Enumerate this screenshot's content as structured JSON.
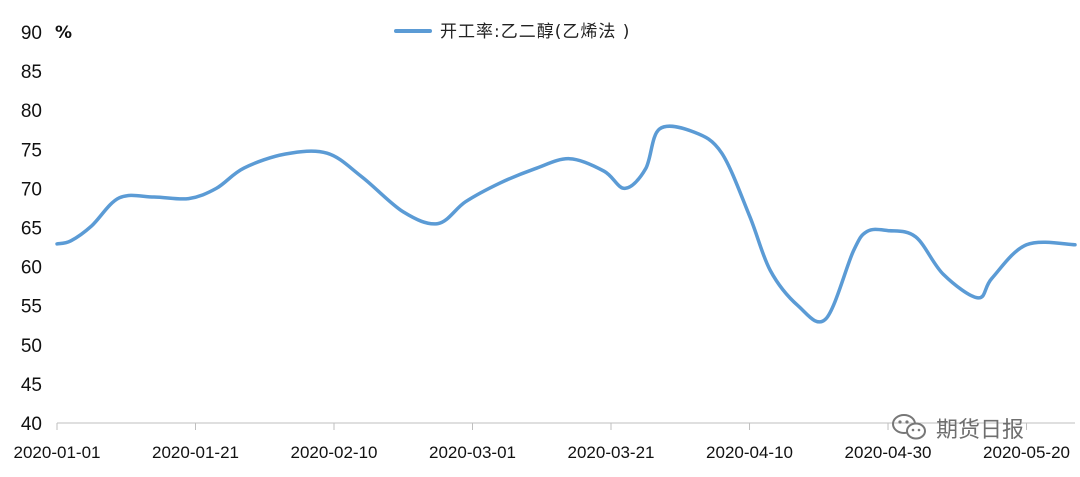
{
  "chart_data": {
    "type": "line",
    "unit": "%",
    "ylim": [
      40,
      90
    ],
    "yticks": [
      40,
      45,
      50,
      55,
      60,
      65,
      70,
      75,
      80,
      85,
      90
    ],
    "x_tick_labels": [
      "2020-01-01",
      "2020-01-21",
      "2020-02-10",
      "2020-03-01",
      "2020-03-21",
      "2020-04-10",
      "2020-04-30",
      "2020-05-20"
    ],
    "x_range": [
      "2020-01-01",
      "2020-05-27"
    ],
    "legend_position": "top-center",
    "grid": false,
    "series": [
      {
        "name": "开工率:乙二醇(乙烯法 )",
        "color": "#5b9bd5",
        "x": [
          "2020-01-01",
          "2020-01-03",
          "2020-01-06",
          "2020-01-10",
          "2020-01-15",
          "2020-01-20",
          "2020-01-24",
          "2020-01-28",
          "2020-02-03",
          "2020-02-09",
          "2020-02-14",
          "2020-02-20",
          "2020-02-25",
          "2020-02-29",
          "2020-03-05",
          "2020-03-10",
          "2020-03-15",
          "2020-03-20",
          "2020-03-23",
          "2020-03-26",
          "2020-03-28",
          "2020-04-02",
          "2020-04-06",
          "2020-04-10",
          "2020-04-13",
          "2020-04-17",
          "2020-04-21",
          "2020-04-25",
          "2020-04-27",
          "2020-04-30",
          "2020-05-04",
          "2020-05-08",
          "2020-05-13",
          "2020-05-15",
          "2020-05-20",
          "2020-05-27"
        ],
        "values": [
          62.9,
          63.3,
          65.2,
          68.8,
          68.9,
          68.7,
          70.0,
          72.6,
          74.4,
          74.5,
          71.5,
          67.0,
          65.5,
          68.3,
          70.7,
          72.5,
          73.8,
          72.2,
          70.0,
          72.5,
          77.6,
          77.2,
          74.5,
          66.5,
          59.5,
          55.0,
          53.3,
          62.0,
          64.5,
          64.6,
          63.8,
          59.0,
          56.0,
          58.5,
          62.8,
          62.8
        ]
      }
    ]
  },
  "watermark": {
    "text": "期货日报",
    "icon": "wechat-icon"
  }
}
